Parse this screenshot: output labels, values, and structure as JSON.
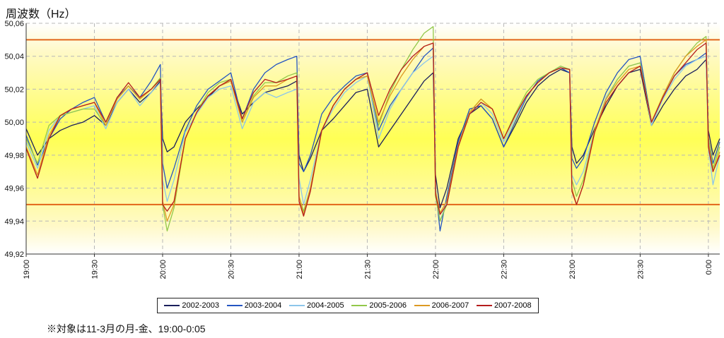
{
  "chart_data": {
    "type": "line",
    "title": "",
    "ylabel": "周波数（Hz）",
    "xlabel": "",
    "ylim": [
      49.92,
      50.06
    ],
    "yticks": [
      "49,92",
      "49,94",
      "49,96",
      "49,98",
      "50,00",
      "50,02",
      "50,04",
      "50,06"
    ],
    "xticks": [
      "19:00",
      "19:30",
      "20:00",
      "20:30",
      "21:00",
      "21:30",
      "22:00",
      "22:30",
      "23:00",
      "23:30",
      "0:00"
    ],
    "reference_lines": [
      50.05,
      49.95
    ],
    "x": [
      "19:00",
      "19:05",
      "19:10",
      "19:15",
      "19:20",
      "19:25",
      "19:30",
      "19:35",
      "19:40",
      "19:45",
      "19:50",
      "19:55",
      "19:59",
      "20:00",
      "20:02",
      "20:05",
      "20:10",
      "20:15",
      "20:20",
      "20:25",
      "20:30",
      "20:35",
      "20:40",
      "20:45",
      "20:50",
      "20:55",
      "20:59",
      "21:00",
      "21:02",
      "21:05",
      "21:10",
      "21:15",
      "21:20",
      "21:25",
      "21:30",
      "21:35",
      "21:40",
      "21:45",
      "21:50",
      "21:55",
      "21:59",
      "22:00",
      "22:02",
      "22:05",
      "22:10",
      "22:15",
      "22:20",
      "22:25",
      "22:30",
      "22:35",
      "22:40",
      "22:45",
      "22:50",
      "22:55",
      "22:59",
      "23:00",
      "23:02",
      "23:05",
      "23:10",
      "23:15",
      "23:20",
      "23:25",
      "23:30",
      "23:35",
      "23:40",
      "23:45",
      "23:50",
      "23:55",
      "23:59",
      "0:00",
      "0:02",
      "0:05"
    ],
    "series": [
      {
        "name": "2002-2003",
        "color": "#1a1f5c",
        "values": [
          49.996,
          49.98,
          49.99,
          49.995,
          49.998,
          50.0,
          50.004,
          49.998,
          50.012,
          50.02,
          50.012,
          50.018,
          50.025,
          49.99,
          49.982,
          49.985,
          50.0,
          50.008,
          50.015,
          50.022,
          50.025,
          50.005,
          50.012,
          50.018,
          50.02,
          50.022,
          50.025,
          49.98,
          49.97,
          49.978,
          49.995,
          50.002,
          50.01,
          50.018,
          50.02,
          49.985,
          49.995,
          50.005,
          50.015,
          50.025,
          50.03,
          49.968,
          49.948,
          49.96,
          49.99,
          50.005,
          50.01,
          50.002,
          49.985,
          49.998,
          50.012,
          50.022,
          50.028,
          50.032,
          50.03,
          49.985,
          49.975,
          49.98,
          49.996,
          50.01,
          50.022,
          50.03,
          50.032,
          49.998,
          50.01,
          50.02,
          50.028,
          50.032,
          50.038,
          49.995,
          49.98,
          49.99
        ]
      },
      {
        "name": "2003-2004",
        "color": "#2455c2",
        "values": [
          49.992,
          49.974,
          49.99,
          50.002,
          50.008,
          50.012,
          50.015,
          50.0,
          50.015,
          50.022,
          50.015,
          50.025,
          50.035,
          49.975,
          49.96,
          49.972,
          49.995,
          50.01,
          50.02,
          50.025,
          50.03,
          50.002,
          50.02,
          50.03,
          50.035,
          50.038,
          50.04,
          49.975,
          49.97,
          49.98,
          50.005,
          50.015,
          50.022,
          50.028,
          50.03,
          49.995,
          50.01,
          50.02,
          50.03,
          50.04,
          50.045,
          49.96,
          49.934,
          49.955,
          49.988,
          50.008,
          50.01,
          50.002,
          49.985,
          50.0,
          50.015,
          50.025,
          50.03,
          50.033,
          50.03,
          49.978,
          49.972,
          49.978,
          50.0,
          50.018,
          50.03,
          50.038,
          50.04,
          50.0,
          50.015,
          50.028,
          50.035,
          50.038,
          50.042,
          49.99,
          49.975,
          49.988
        ]
      },
      {
        "name": "2004-2005",
        "color": "#8cc6ea",
        "values": [
          49.988,
          49.972,
          49.995,
          50.004,
          50.006,
          50.008,
          50.01,
          49.996,
          50.012,
          50.02,
          50.01,
          50.018,
          50.024,
          49.965,
          49.952,
          49.965,
          49.994,
          50.005,
          50.015,
          50.02,
          50.022,
          49.996,
          50.012,
          50.018,
          50.015,
          50.018,
          50.02,
          49.966,
          49.95,
          49.965,
          49.995,
          50.008,
          50.018,
          50.024,
          50.028,
          49.99,
          50.008,
          50.02,
          50.03,
          50.036,
          50.04,
          49.96,
          49.94,
          49.952,
          49.985,
          50.005,
          50.012,
          50.005,
          49.988,
          50.002,
          50.016,
          50.024,
          50.03,
          50.034,
          50.032,
          49.968,
          49.962,
          49.97,
          49.995,
          50.015,
          50.026,
          50.034,
          50.036,
          49.998,
          50.014,
          50.026,
          50.034,
          50.038,
          50.04,
          49.985,
          49.962,
          49.98
        ]
      },
      {
        "name": "2005-2006",
        "color": "#92c84a",
        "values": [
          49.99,
          49.975,
          49.998,
          50.004,
          50.006,
          50.008,
          50.008,
          49.998,
          50.014,
          50.022,
          50.014,
          50.02,
          50.027,
          49.95,
          49.934,
          49.948,
          49.99,
          50.006,
          50.018,
          50.024,
          50.026,
          50.0,
          50.016,
          50.024,
          50.024,
          50.028,
          50.03,
          49.955,
          49.946,
          49.96,
          49.995,
          50.01,
          50.02,
          50.026,
          50.028,
          49.998,
          50.018,
          50.032,
          50.044,
          50.054,
          50.058,
          49.955,
          49.94,
          49.95,
          49.985,
          50.006,
          50.014,
          50.008,
          49.99,
          50.005,
          50.018,
          50.026,
          50.03,
          50.034,
          50.032,
          49.965,
          49.955,
          49.965,
          49.995,
          50.014,
          50.026,
          50.034,
          50.036,
          50.0,
          50.016,
          50.03,
          50.04,
          50.048,
          50.052,
          49.99,
          49.972,
          49.985
        ]
      },
      {
        "name": "2006-2007",
        "color": "#dc9a22",
        "values": [
          49.985,
          49.968,
          49.992,
          50.004,
          50.008,
          50.01,
          50.012,
          49.998,
          50.014,
          50.022,
          50.014,
          50.02,
          50.026,
          49.952,
          49.94,
          49.95,
          49.99,
          50.006,
          50.016,
          50.022,
          50.025,
          50.0,
          50.015,
          50.022,
          50.022,
          50.026,
          50.028,
          49.955,
          49.944,
          49.96,
          49.995,
          50.01,
          50.02,
          50.026,
          50.028,
          50.0,
          50.016,
          50.028,
          50.038,
          50.046,
          50.048,
          49.958,
          49.945,
          49.952,
          49.986,
          50.006,
          50.014,
          50.008,
          49.99,
          50.004,
          50.016,
          50.024,
          50.03,
          50.033,
          50.032,
          49.96,
          49.95,
          49.962,
          49.995,
          50.014,
          50.024,
          50.032,
          50.034,
          50.0,
          50.016,
          50.03,
          50.04,
          50.046,
          50.05,
          49.988,
          49.97,
          49.982
        ]
      },
      {
        "name": "2007-2008",
        "color": "#b51d1d",
        "values": [
          49.984,
          49.966,
          49.99,
          50.004,
          50.008,
          50.01,
          50.012,
          50.0,
          50.015,
          50.024,
          50.015,
          50.02,
          50.026,
          49.95,
          49.946,
          49.952,
          49.99,
          50.006,
          50.016,
          50.022,
          50.026,
          50.002,
          50.018,
          50.026,
          50.024,
          50.026,
          50.028,
          49.952,
          49.943,
          49.958,
          49.995,
          50.01,
          50.02,
          50.026,
          50.03,
          50.004,
          50.02,
          50.032,
          50.04,
          50.046,
          50.048,
          49.956,
          49.944,
          49.95,
          49.985,
          50.005,
          50.012,
          50.008,
          49.99,
          50.004,
          50.016,
          50.024,
          50.03,
          50.033,
          50.032,
          49.958,
          49.95,
          49.962,
          49.994,
          50.012,
          50.022,
          50.03,
          50.034,
          50.0,
          50.015,
          50.028,
          50.036,
          50.044,
          50.048,
          49.985,
          49.97,
          49.98
        ]
      }
    ]
  },
  "footnote": "※対象は11-3月の月-金、19:00-0:05"
}
